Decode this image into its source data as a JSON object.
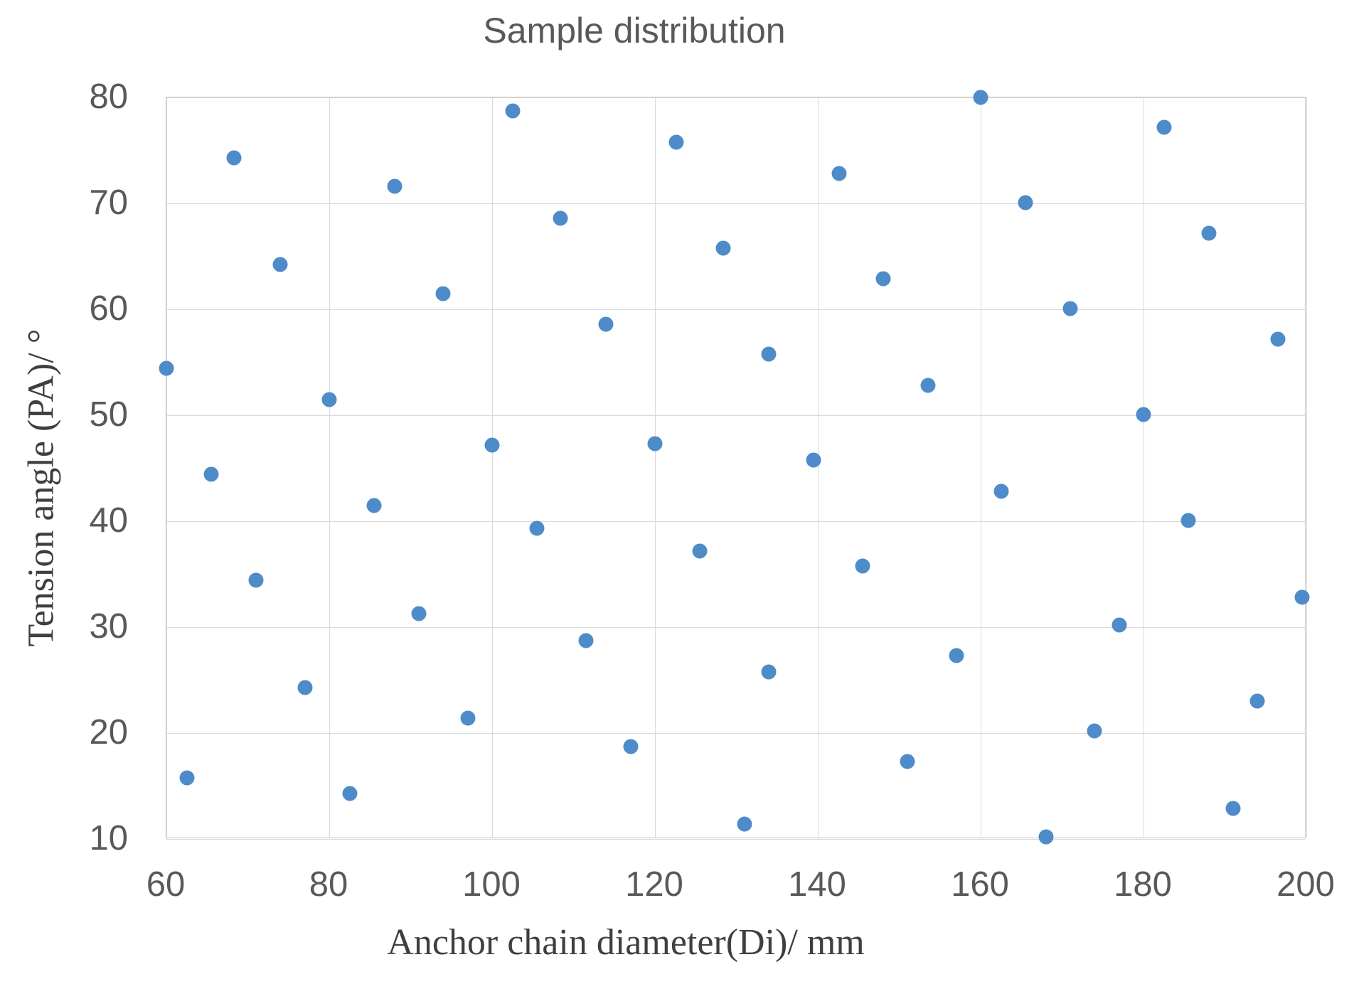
{
  "chart_data": {
    "type": "scatter",
    "title": "Sample distribution",
    "xlabel": "Anchor chain diameter(Di)/ mm",
    "ylabel": "Tension angle (PA)/ °",
    "xlim": [
      60,
      200
    ],
    "ylim": [
      10,
      80
    ],
    "x_ticks": [
      60,
      80,
      100,
      120,
      140,
      160,
      180,
      200
    ],
    "y_ticks": [
      10,
      20,
      30,
      40,
      50,
      60,
      70,
      80
    ],
    "grid": true,
    "legend": false,
    "marker_color": "#4e8bc9",
    "grid_color": "#d9d9d9",
    "axis_color": "#c6c6c6",
    "tick_text_color": "#595959",
    "axis_title_color": "#3f3f3f",
    "points": [
      [
        60,
        54.4
      ],
      [
        62.5,
        15.8
      ],
      [
        65.5,
        44.4
      ],
      [
        68.3,
        74.3
      ],
      [
        71,
        34.4
      ],
      [
        74,
        64.2
      ],
      [
        77,
        24.3
      ],
      [
        80,
        51.5
      ],
      [
        82.5,
        14.3
      ],
      [
        85.5,
        41.5
      ],
      [
        88,
        71.6
      ],
      [
        91,
        31.3
      ],
      [
        94,
        61.5
      ],
      [
        97,
        21.4
      ],
      [
        100,
        47.2
      ],
      [
        102.5,
        78.7
      ],
      [
        105.5,
        39.3
      ],
      [
        108.4,
        68.6
      ],
      [
        111.5,
        28.7
      ],
      [
        114,
        58.6
      ],
      [
        117,
        18.7
      ],
      [
        120,
        47.3
      ],
      [
        122.6,
        75.8
      ],
      [
        125.5,
        37.2
      ],
      [
        128.4,
        65.8
      ],
      [
        131,
        11.4
      ],
      [
        134,
        55.8
      ],
      [
        134,
        25.8
      ],
      [
        139.5,
        45.8
      ],
      [
        142.6,
        72.8
      ],
      [
        145.5,
        35.8
      ],
      [
        148,
        62.9
      ],
      [
        151,
        17.3
      ],
      [
        153.5,
        52.8
      ],
      [
        157,
        27.3
      ],
      [
        160,
        80
      ],
      [
        162.5,
        42.8
      ],
      [
        165.5,
        70.1
      ],
      [
        168,
        10.2
      ],
      [
        171,
        60.1
      ],
      [
        174,
        20.2
      ],
      [
        177,
        30.2
      ],
      [
        180,
        50.1
      ],
      [
        182.5,
        77.2
      ],
      [
        185.5,
        40.1
      ],
      [
        188,
        67.2
      ],
      [
        191,
        12.9
      ],
      [
        194,
        23
      ],
      [
        196.5,
        57.2
      ],
      [
        199.5,
        32.8
      ]
    ]
  }
}
